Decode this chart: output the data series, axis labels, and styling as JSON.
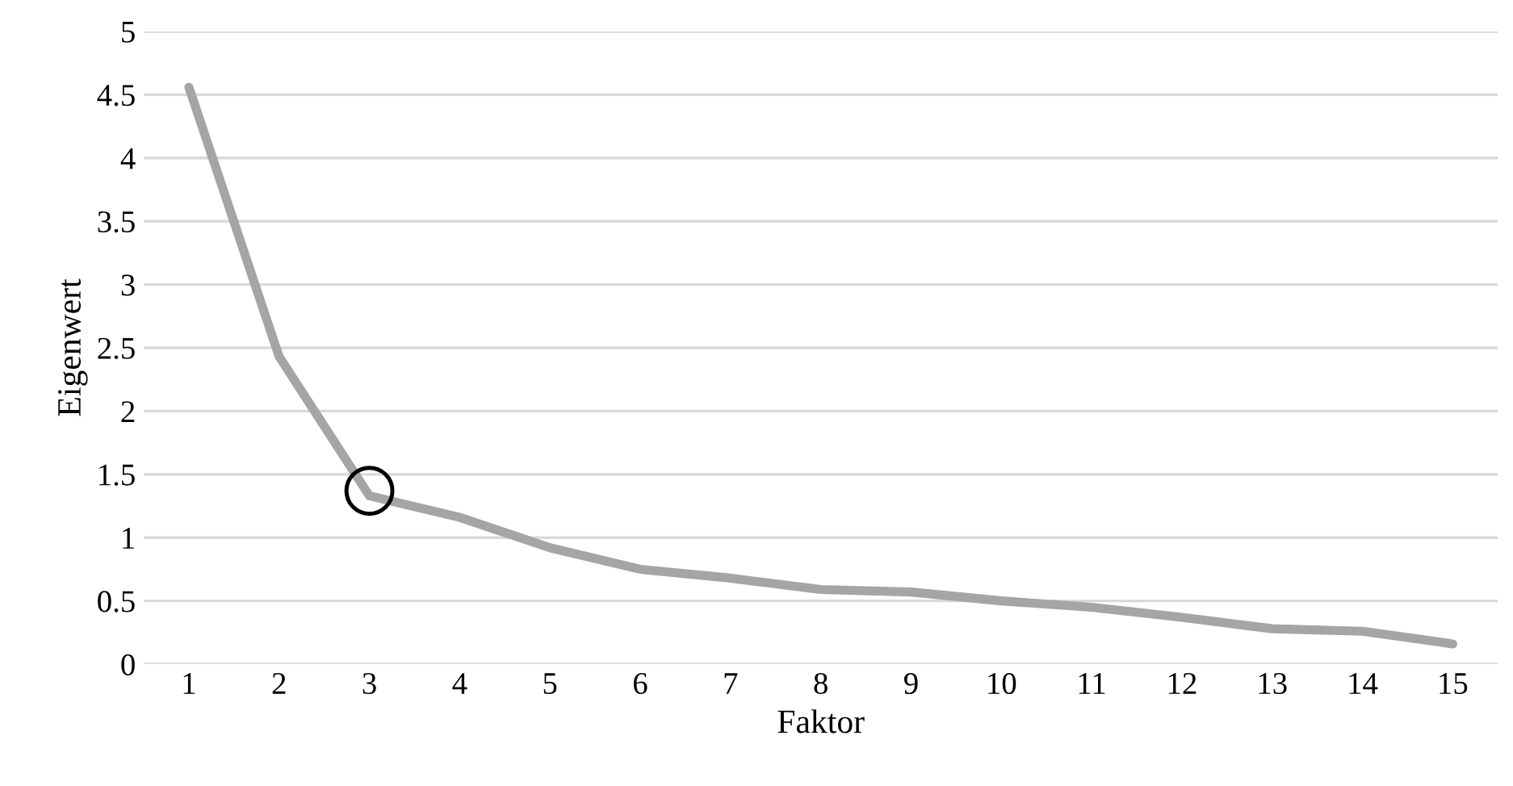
{
  "chart_data": {
    "type": "line",
    "xlabel": "Faktor",
    "ylabel": "Eigenwert",
    "categories": [
      "1",
      "2",
      "3",
      "4",
      "5",
      "6",
      "7",
      "8",
      "9",
      "10",
      "11",
      "12",
      "13",
      "14",
      "15"
    ],
    "series": [
      {
        "color": "#a5a5a5",
        "values": [
          4.56,
          2.43,
          1.33,
          1.16,
          0.92,
          0.75,
          0.68,
          0.59,
          0.57,
          0.5,
          0.45,
          0.37,
          0.28,
          0.26,
          0.16
        ]
      },
      {
        "type": "scatter",
        "marker": "circle",
        "color": "#000000",
        "x": [
          "3"
        ],
        "values": [
          1.37
        ]
      }
    ],
    "ylim": [
      0,
      5
    ],
    "yticks": [
      0,
      0.5,
      1,
      1.5,
      2,
      2.5,
      3,
      3.5,
      4,
      4.5,
      5
    ],
    "grid": "y",
    "legend": false
  }
}
